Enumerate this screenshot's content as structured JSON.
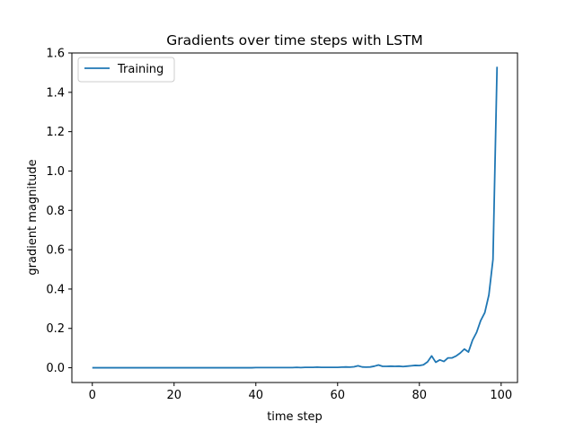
{
  "chart_data": {
    "type": "line",
    "title": "Gradients over time steps with LSTM",
    "xlabel": "time step",
    "ylabel": "gradient magnitude",
    "xlim": [
      -5,
      104
    ],
    "ylim": [
      -0.075,
      1.6
    ],
    "xticks": [
      0,
      20,
      40,
      60,
      80,
      100
    ],
    "yticks": [
      0.0,
      0.2,
      0.4,
      0.6,
      0.8,
      1.0,
      1.2,
      1.4,
      1.6
    ],
    "grid": false,
    "legend_position": "top-left",
    "series": [
      {
        "name": "Training",
        "color": "#1f77b4",
        "x": [
          0,
          1,
          2,
          3,
          4,
          5,
          6,
          7,
          8,
          9,
          10,
          11,
          12,
          13,
          14,
          15,
          16,
          17,
          18,
          19,
          20,
          21,
          22,
          23,
          24,
          25,
          26,
          27,
          28,
          29,
          30,
          31,
          32,
          33,
          34,
          35,
          36,
          37,
          38,
          39,
          40,
          41,
          42,
          43,
          44,
          45,
          46,
          47,
          48,
          49,
          50,
          51,
          52,
          53,
          54,
          55,
          56,
          57,
          58,
          59,
          60,
          61,
          62,
          63,
          64,
          65,
          66,
          67,
          68,
          69,
          70,
          71,
          72,
          73,
          74,
          75,
          76,
          77,
          78,
          79,
          80,
          81,
          82,
          83,
          84,
          85,
          86,
          87,
          88,
          89,
          90,
          91,
          92,
          93,
          94,
          95,
          96,
          97,
          98,
          99
        ],
        "y": [
          0,
          0,
          0,
          0,
          0,
          0,
          0,
          0,
          0,
          0,
          0,
          0,
          0,
          0,
          0,
          0,
          0,
          0,
          0,
          0,
          0,
          0,
          0,
          0,
          0,
          0,
          0,
          0,
          0,
          0,
          0,
          0,
          0,
          0,
          0,
          0,
          0,
          0,
          0,
          0,
          0.001,
          0.001,
          0.001,
          0.001,
          0.001,
          0.001,
          0.001,
          0.001,
          0.001,
          0.001,
          0.002,
          0.001,
          0.002,
          0.002,
          0.002,
          0.003,
          0.002,
          0.002,
          0.002,
          0.002,
          0.002,
          0.003,
          0.004,
          0.003,
          0.005,
          0.01,
          0.004,
          0.003,
          0.004,
          0.008,
          0.014,
          0.007,
          0.007,
          0.008,
          0.007,
          0.008,
          0.006,
          0.008,
          0.01,
          0.012,
          0.011,
          0.015,
          0.03,
          0.06,
          0.028,
          0.04,
          0.032,
          0.05,
          0.05,
          0.06,
          0.075,
          0.095,
          0.08,
          0.14,
          0.18,
          0.24,
          0.28,
          0.37,
          0.55,
          1.53
        ]
      }
    ]
  }
}
